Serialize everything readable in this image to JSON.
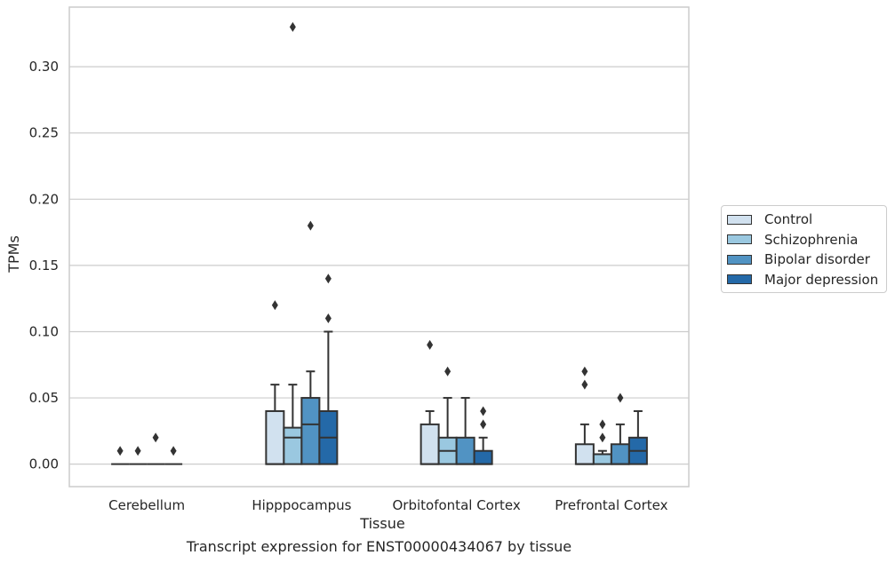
{
  "chart_data": {
    "type": "boxplot",
    "title": "",
    "xlabel": "Tissue",
    "ylabel": "TPMs",
    "caption": "Transcript expression for ENST00000434067 by tissue",
    "ylim": [
      -0.017,
      0.345
    ],
    "yticks": [
      0.0,
      0.05,
      0.1,
      0.15,
      0.2,
      0.25,
      0.3
    ],
    "ytick_labels": [
      "0.00",
      "0.05",
      "0.10",
      "0.15",
      "0.20",
      "0.25",
      "0.30"
    ],
    "grid": true,
    "legend_position": "right",
    "categories": [
      "Cerebellum",
      "Hipppocampus",
      "Orbitofontal Cortex",
      "Prefrontal Cortex"
    ],
    "series": [
      {
        "name": "Control",
        "color": "#d1e1ef",
        "boxes": [
          {
            "q1": 0.0,
            "median": 0.0,
            "q3": 0.0,
            "whisker_low": 0.0,
            "whisker_high": 0.0,
            "outliers": [
              0.01
            ]
          },
          {
            "q1": 0.0,
            "median": 0.0,
            "q3": 0.04,
            "whisker_low": 0.0,
            "whisker_high": 0.06,
            "outliers": [
              0.12
            ]
          },
          {
            "q1": 0.0,
            "median": 0.0,
            "q3": 0.03,
            "whisker_low": 0.0,
            "whisker_high": 0.04,
            "outliers": [
              0.09
            ]
          },
          {
            "q1": 0.0,
            "median": 0.0,
            "q3": 0.015,
            "whisker_low": 0.0,
            "whisker_high": 0.03,
            "outliers": [
              0.06,
              0.07
            ]
          }
        ]
      },
      {
        "name": "Schizophrenia",
        "color": "#9ac8e0",
        "boxes": [
          {
            "q1": 0.0,
            "median": 0.0,
            "q3": 0.0,
            "whisker_low": 0.0,
            "whisker_high": 0.0,
            "outliers": [
              0.01
            ]
          },
          {
            "q1": 0.0,
            "median": 0.02,
            "q3": 0.0275,
            "whisker_low": 0.0,
            "whisker_high": 0.06,
            "outliers": [
              0.33
            ]
          },
          {
            "q1": 0.0,
            "median": 0.01,
            "q3": 0.02,
            "whisker_low": 0.0,
            "whisker_high": 0.05,
            "outliers": [
              0.07
            ]
          },
          {
            "q1": 0.0,
            "median": 0.0075,
            "q3": 0.0075,
            "whisker_low": 0.0,
            "whisker_high": 0.01,
            "outliers": [
              0.02,
              0.03
            ]
          }
        ]
      },
      {
        "name": "Bipolar disorder",
        "color": "#5193c3",
        "boxes": [
          {
            "q1": 0.0,
            "median": 0.0,
            "q3": 0.0,
            "whisker_low": 0.0,
            "whisker_high": 0.0,
            "outliers": [
              0.02
            ]
          },
          {
            "q1": 0.0,
            "median": 0.03,
            "q3": 0.05,
            "whisker_low": 0.0,
            "whisker_high": 0.07,
            "outliers": [
              0.18
            ]
          },
          {
            "q1": 0.0,
            "median": 0.0,
            "q3": 0.02,
            "whisker_low": 0.0,
            "whisker_high": 0.05,
            "outliers": []
          },
          {
            "q1": 0.0,
            "median": 0.0,
            "q3": 0.015,
            "whisker_low": 0.0,
            "whisker_high": 0.03,
            "outliers": [
              0.05
            ]
          }
        ]
      },
      {
        "name": "Major depression",
        "color": "#2469a8",
        "boxes": [
          {
            "q1": 0.0,
            "median": 0.0,
            "q3": 0.0,
            "whisker_low": 0.0,
            "whisker_high": 0.0,
            "outliers": [
              0.01
            ]
          },
          {
            "q1": 0.0,
            "median": 0.02,
            "q3": 0.04,
            "whisker_low": 0.0,
            "whisker_high": 0.1,
            "outliers": [
              0.11,
              0.14
            ]
          },
          {
            "q1": 0.0,
            "median": 0.0,
            "q3": 0.01,
            "whisker_low": 0.0,
            "whisker_high": 0.02,
            "outliers": [
              0.03,
              0.04
            ]
          },
          {
            "q1": 0.0,
            "median": 0.01,
            "q3": 0.02,
            "whisker_low": 0.0,
            "whisker_high": 0.04,
            "outliers": []
          }
        ]
      }
    ]
  }
}
